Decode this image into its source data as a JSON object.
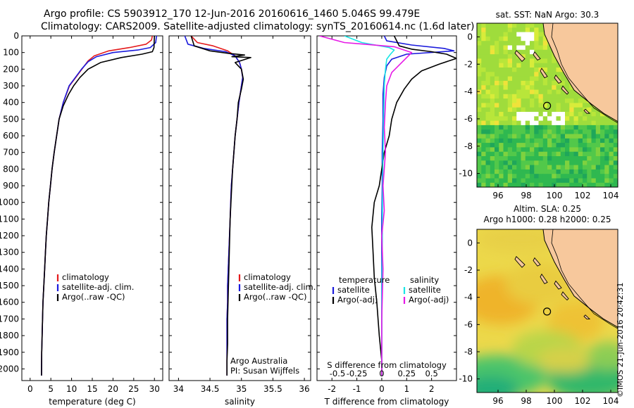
{
  "header": {
    "line1": "Argo profile: CS 5903912_170 12-Jun-2016 20160616_1460 5.046S 99.479E",
    "line2": "Climatology: CARS2009. Satellite-adjusted climatology: synTS_20160614.nc (1.6d later)"
  },
  "colors": {
    "climatology": "#e41a1c",
    "satellite": "#1a1adc",
    "argo": "#000000",
    "sat_s": "#19e6e6",
    "argo_s": "#e619e6",
    "land": "#f7c89c",
    "sst_warm": "#a8e03a"
  },
  "chart_data": [
    {
      "type": "line",
      "name": "temperature",
      "xlabel": "temperature (deg C)",
      "xlim": [
        -2,
        32
      ],
      "ylim": [
        2070,
        0
      ],
      "xticks": [
        0,
        5,
        10,
        15,
        20,
        25,
        30
      ],
      "xtick_labels": [
        "0",
        "5",
        "10",
        "15",
        "20",
        "25",
        "30"
      ],
      "yticks": [
        0,
        100,
        200,
        300,
        400,
        500,
        600,
        700,
        800,
        900,
        1000,
        1100,
        1200,
        1300,
        1400,
        1500,
        1600,
        1700,
        1800,
        1900,
        2000
      ],
      "ytick_labels": [
        "0",
        "100",
        "200",
        "300",
        "400",
        "500",
        "600",
        "700",
        "800",
        "900",
        "1000",
        "1100",
        "1200",
        "1300",
        "1400",
        "1500",
        "1600",
        "1700",
        "1800",
        "1900",
        "2000"
      ],
      "legend": [
        "climatology",
        "satellite-adj. clim.",
        "Argo(..raw -QC)"
      ],
      "series": [
        {
          "name": "climatology",
          "x": [
            29.5,
            29.3,
            28,
            24,
            19,
            15.5,
            14,
            12.5,
            11,
            9.5,
            8,
            7,
            6.4,
            5.8,
            5.3,
            4.9,
            4.5,
            4.2,
            3.9,
            3.7,
            3.5,
            3.3,
            3.1,
            3.0,
            2.9,
            2.8,
            2.75
          ],
          "y": [
            0,
            25,
            50,
            70,
            90,
            120,
            150,
            200,
            250,
            300,
            400,
            500,
            600,
            700,
            800,
            900,
            1000,
            1100,
            1200,
            1300,
            1400,
            1500,
            1600,
            1700,
            1800,
            1900,
            2040
          ]
        },
        {
          "name": "satellite-adj. clim.",
          "x": [
            30.5,
            30.3,
            29,
            26,
            20,
            16,
            14,
            12.4,
            10.9,
            9.4,
            8,
            7,
            6.4,
            5.8,
            5.3,
            4.9,
            4.5,
            4.2,
            3.9,
            3.7,
            3.5,
            3.3,
            3.1,
            3.0,
            2.9,
            2.8,
            2.75
          ],
          "y": [
            0,
            40,
            70,
            85,
            100,
            125,
            155,
            200,
            250,
            300,
            400,
            500,
            600,
            700,
            800,
            900,
            1000,
            1100,
            1200,
            1300,
            1400,
            1500,
            1600,
            1700,
            1800,
            1900,
            2040
          ]
        },
        {
          "name": "Argo(..raw -QC)",
          "x": [
            30,
            29.9,
            29.5,
            27,
            22,
            17,
            14,
            12,
            10.5,
            9.3,
            8,
            7,
            6.4,
            5.8,
            5.3,
            4.9,
            4.5,
            4.2,
            3.9,
            3.7,
            3.5,
            3.3,
            3.1,
            3.0,
            2.9,
            2.8,
            2.75
          ],
          "y": [
            0,
            70,
            95,
            110,
            130,
            160,
            200,
            250,
            300,
            350,
            420,
            500,
            600,
            700,
            800,
            900,
            1000,
            1100,
            1200,
            1300,
            1400,
            1500,
            1600,
            1700,
            1800,
            1900,
            2040
          ]
        }
      ]
    },
    {
      "type": "line",
      "name": "salinity",
      "xlabel": "salinity",
      "xlim": [
        33.85,
        36.1
      ],
      "ylim": [
        2070,
        0
      ],
      "xticks": [
        34,
        34.5,
        35,
        35.5,
        36
      ],
      "xtick_labels": [
        "34",
        "34.5",
        "35",
        "35.5",
        "36"
      ],
      "legend": [
        "climatology",
        "satellite-adj. clim.",
        "Argo(..raw -QC)"
      ],
      "annotation": [
        "Argo Australia",
        "PI: Susan Wijffels"
      ],
      "series": [
        {
          "name": "climatology",
          "x": [
            34.2,
            34.3,
            34.55,
            34.78,
            34.9,
            34.97,
            35.0,
            35.02,
            35.0,
            34.96,
            34.93,
            34.9,
            34.88,
            34.86,
            34.84,
            34.83,
            34.82,
            34.81,
            34.8,
            34.79,
            34.78,
            34.78,
            34.77,
            34.77,
            34.77
          ],
          "y": [
            0,
            40,
            60,
            90,
            120,
            160,
            200,
            250,
            300,
            400,
            500,
            600,
            700,
            800,
            900,
            1000,
            1100,
            1200,
            1300,
            1400,
            1500,
            1600,
            1700,
            1800,
            2040
          ]
        },
        {
          "name": "satellite-adj. clim.",
          "x": [
            34.1,
            34.15,
            34.4,
            34.75,
            34.9,
            34.97,
            35.0,
            35.02,
            35.0,
            34.96,
            34.93,
            34.9,
            34.88,
            34.86,
            34.84,
            34.83,
            34.82,
            34.81,
            34.8,
            34.79,
            34.78,
            34.78,
            34.77,
            34.77,
            34.77
          ],
          "y": [
            0,
            50,
            75,
            95,
            120,
            160,
            200,
            250,
            300,
            400,
            500,
            600,
            700,
            800,
            900,
            1000,
            1100,
            1200,
            1300,
            1400,
            1500,
            1600,
            1700,
            1800,
            2040
          ]
        },
        {
          "name": "Argo(..raw -QC)",
          "x": [
            34.2,
            34.25,
            34.5,
            34.8,
            35.05,
            34.85,
            35.15,
            34.9,
            35.0,
            35.03,
            35.0,
            34.95,
            34.93,
            34.9,
            34.88,
            34.86,
            34.84,
            34.82,
            34.81,
            34.8,
            34.79,
            34.78,
            34.78,
            34.77,
            34.77
          ],
          "y": [
            0,
            60,
            90,
            105,
            115,
            125,
            130,
            160,
            200,
            260,
            320,
            400,
            500,
            600,
            700,
            800,
            950,
            1100,
            1250,
            1400,
            1550,
            1700,
            1850,
            1950,
            2040
          ]
        }
      ]
    },
    {
      "type": "line",
      "name": "differences",
      "xlabel": "T difference from climatology",
      "xlabel_top": "S difference from climatology",
      "xlim": [
        -2.6,
        3.0
      ],
      "ylim": [
        2070,
        0
      ],
      "xticks": [
        -2,
        -1,
        0,
        1,
        2
      ],
      "xtick_labels": [
        "-2",
        "-1",
        "0",
        "1",
        "2"
      ],
      "xticks_s": [
        -2,
        -1,
        0,
        1,
        2
      ],
      "xtick_labels_s": [
        "-0.5",
        "-0.25",
        "0",
        "0.25",
        "0.5"
      ],
      "legend_temperature": [
        "temperature",
        "satellite",
        "Argo(-adj)"
      ],
      "legend_salinity": [
        "salinity",
        "satellite",
        "Argo(-adj)"
      ],
      "series": [
        {
          "name": "T satellite",
          "x": [
            0.1,
            0.2,
            1.2,
            2.5,
            2.9,
            1.0,
            0.4,
            0.2,
            0.1,
            0.05,
            0.05,
            0.02,
            0.02,
            0,
            0,
            0,
            0,
            0
          ],
          "y": [
            0,
            30,
            55,
            75,
            90,
            110,
            140,
            180,
            250,
            350,
            500,
            700,
            900,
            1100,
            1300,
            1500,
            1800,
            2040
          ]
        },
        {
          "name": "T Argo(-adj)",
          "x": [
            0.5,
            0.7,
            1.2,
            2.0,
            2.6,
            3.0,
            2.3,
            1.6,
            1.2,
            0.9,
            0.6,
            0.4,
            0.3,
            0.1,
            0.0,
            -0.1,
            -0.3,
            -0.4,
            -0.35,
            -0.3,
            -0.2,
            -0.1,
            0,
            0
          ],
          "y": [
            0,
            60,
            80,
            95,
            110,
            135,
            170,
            210,
            260,
            320,
            400,
            500,
            600,
            700,
            800,
            900,
            1000,
            1150,
            1300,
            1450,
            1600,
            1800,
            1950,
            2040
          ]
        },
        {
          "name": "S satellite",
          "x": [
            -1.5,
            -0.8,
            0.3,
            0.5,
            0.35,
            0.2,
            0.15,
            0.1,
            0.08,
            0.05,
            0.03,
            0.02,
            0,
            0,
            0
          ],
          "y": [
            0,
            40,
            70,
            85,
            110,
            140,
            200,
            300,
            450,
            700,
            1000,
            1300,
            1600,
            1900,
            2040
          ]
        },
        {
          "name": "S Argo(-adj)",
          "x": [
            -2.5,
            -1.5,
            0.5,
            1.2,
            1.0,
            0.8,
            0.4,
            0.2,
            0.15,
            0.1,
            0.15,
            0.05,
            0.1,
            0.0,
            0.05,
            0,
            0
          ],
          "y": [
            0,
            40,
            65,
            100,
            130,
            160,
            220,
            300,
            400,
            550,
            700,
            900,
            1050,
            1200,
            1400,
            1700,
            2040
          ]
        }
      ]
    },
    {
      "type": "heatmap",
      "name": "sst_map",
      "title": "sat. SST: NaN Argo: 30.3",
      "xlim": [
        94.5,
        104.5
      ],
      "ylim": [
        -11,
        1
      ],
      "xticks": [
        96,
        98,
        100,
        102,
        104
      ],
      "xtick_labels": [
        "96",
        "98",
        "100",
        "102",
        "104"
      ],
      "yticks": [
        0,
        -2,
        -4,
        -6,
        -8,
        -10
      ],
      "ytick_labels": [
        "0",
        "-2",
        "-4",
        "-6",
        "-8",
        "-10"
      ],
      "float_position": [
        99.479,
        -5.046
      ]
    },
    {
      "type": "heatmap",
      "name": "sla_map",
      "title_line1": "Altim. SLA: 0.25",
      "title_line2": "Argo h1000: 0.28 h2000: 0.25",
      "xlim": [
        94.5,
        104.5
      ],
      "ylim": [
        -11,
        1
      ],
      "xticks": [
        96,
        98,
        100,
        102,
        104
      ],
      "xtick_labels": [
        "96",
        "98",
        "100",
        "102",
        "104"
      ],
      "yticks": [
        0,
        -2,
        -4,
        -6,
        -8,
        -10
      ],
      "ytick_labels": [
        "0",
        "-2",
        "-4",
        "-6",
        "-8",
        "-10"
      ],
      "float_position": [
        99.479,
        -5.046
      ]
    }
  ],
  "credit": "©IMOS 21-Jun-2016 20:42:31"
}
